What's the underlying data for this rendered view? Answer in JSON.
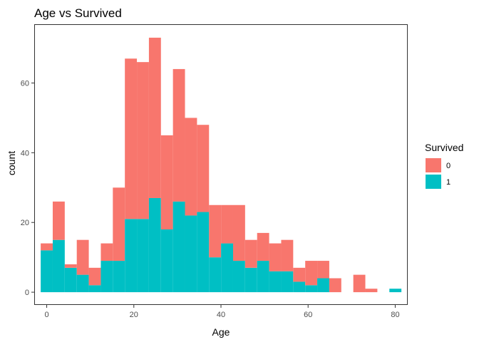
{
  "chart_data": {
    "type": "bar",
    "subtype": "stacked-histogram",
    "title": "Age vs Survived",
    "xlabel": "Age",
    "ylabel": "count",
    "xlim": [
      -2.87,
      82.87
    ],
    "ylim": [
      -3.66,
      76.86
    ],
    "x_ticks": [
      0,
      20,
      40,
      60,
      80
    ],
    "y_ticks": [
      0,
      20,
      40,
      60
    ],
    "grid": false,
    "legend": {
      "title": "Survived",
      "position": "right"
    },
    "bin_width": 2.76,
    "bin_centers": [
      0,
      2.76,
      5.52,
      8.28,
      11.04,
      13.8,
      16.56,
      19.32,
      22.08,
      24.84,
      27.6,
      30.36,
      33.12,
      35.88,
      38.64,
      41.4,
      44.16,
      46.92,
      49.68,
      52.44,
      55.2,
      57.96,
      60.72,
      63.48,
      66.24,
      69,
      71.76,
      74.52,
      77.28,
      80.04
    ],
    "series": [
      {
        "name": "0",
        "color": "#F8766D",
        "values": [
          2,
          11,
          1,
          10,
          5,
          5,
          21,
          46,
          45,
          46,
          27,
          38,
          28,
          25,
          15,
          11,
          16,
          8,
          8,
          8,
          9,
          4,
          7,
          5,
          4,
          0,
          5,
          1,
          0,
          0
        ]
      },
      {
        "name": "1",
        "color": "#00BFC4",
        "values": [
          12,
          15,
          7,
          5,
          2,
          9,
          9,
          21,
          21,
          27,
          18,
          26,
          22,
          23,
          10,
          14,
          9,
          7,
          9,
          6,
          6,
          3,
          2,
          4,
          0,
          0,
          0,
          0,
          0,
          1
        ]
      }
    ]
  }
}
